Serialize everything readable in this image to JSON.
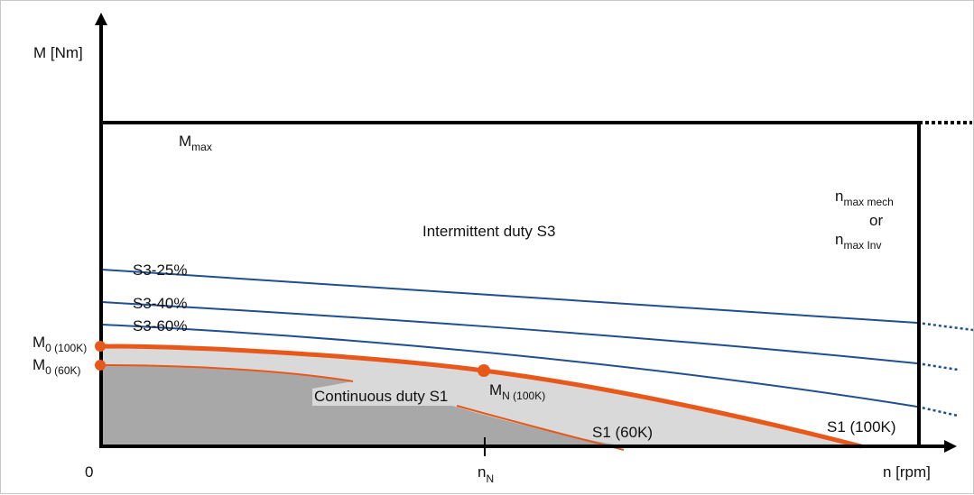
{
  "axes": {
    "y_label": "M [Nm]",
    "x_label": "n [rpm]",
    "origin": "0",
    "n_nominal_label": "n",
    "n_nominal_sub": "N"
  },
  "labels": {
    "mmax_main": "M",
    "mmax_sub": "max",
    "intermittent": "Intermittent duty S3",
    "nmax_mech_main": "n",
    "nmax_mech_sub": "max mech",
    "or": "or",
    "nmax_inv_main": "n",
    "nmax_inv_sub": "max Inv",
    "s3_25": "S3-25%",
    "s3_40": "S3-40%",
    "s3_60": "S3-60%",
    "m0_100k_main": "M",
    "m0_100k_sub": "0 (100K)",
    "m0_60k_main": "M",
    "m0_60k_sub": "0 (60K)",
    "continuous": "Continuous duty S1",
    "mn_100k_main": "M",
    "mn_100k_sub": "N (100K)",
    "s1_60k": "S1 (60K)",
    "s1_100k": "S1 (100K)"
  },
  "colors": {
    "axis": "#000000",
    "s3_curves": "#1f4e91",
    "s1_curves": "#e8581a",
    "region_dark": "#a9a9a9",
    "region_light": "#d9d9d9"
  }
}
